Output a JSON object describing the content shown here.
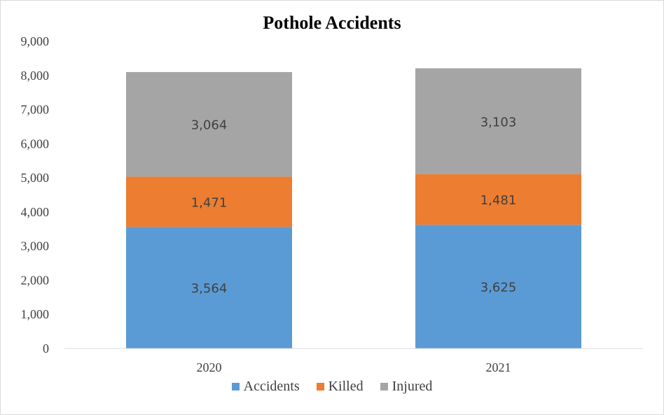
{
  "chart_data": {
    "type": "bar",
    "stacked": true,
    "title": "Pothole Accidents",
    "categories": [
      "2020",
      "2021"
    ],
    "series": [
      {
        "name": "Accidents",
        "values": [
          3564,
          3625
        ],
        "labels": [
          "3,564",
          "3,625"
        ],
        "color": "#5b9bd5"
      },
      {
        "name": "Killed",
        "values": [
          1471,
          1481
        ],
        "labels": [
          "1,471",
          "1,481"
        ],
        "color": "#ed7d31"
      },
      {
        "name": "Injured",
        "values": [
          3064,
          3103
        ],
        "labels": [
          "3,064",
          "3,103"
        ],
        "color": "#a5a5a5"
      }
    ],
    "ylim": [
      0,
      9000
    ],
    "yticks": [
      0,
      1000,
      2000,
      3000,
      4000,
      5000,
      6000,
      7000,
      8000,
      9000
    ],
    "ytick_labels": [
      "0",
      "1,000",
      "2,000",
      "3,000",
      "4,000",
      "5,000",
      "6,000",
      "7,000",
      "8,000",
      "9,000"
    ],
    "grid": false,
    "legend_position": "bottom"
  }
}
